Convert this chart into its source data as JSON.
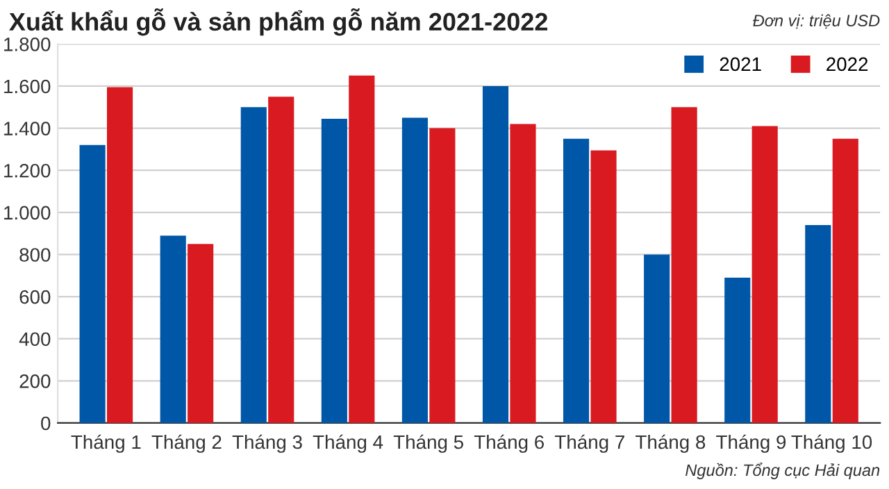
{
  "chart_data": {
    "type": "bar",
    "title": "Xuất khẩu gỗ và sản phẩm gỗ năm 2021-2022",
    "annotations": [
      "Đơn vị: triệu USD",
      "Nguồn: Tổng cục Hải quan"
    ],
    "categories": [
      "Tháng 1",
      "Tháng 2",
      "Tháng 3",
      "Tháng 4",
      "Tháng 5",
      "Tháng 6",
      "Tháng 7",
      "Tháng 8",
      "Tháng 9",
      "Tháng 10"
    ],
    "series": [
      {
        "name": "2021",
        "color": "#0057a8",
        "values": [
          1320,
          890,
          1500,
          1445,
          1450,
          1600,
          1350,
          800,
          690,
          940
        ]
      },
      {
        "name": "2022",
        "color": "#d91a21",
        "values": [
          1595,
          850,
          1550,
          1650,
          1400,
          1420,
          1295,
          1500,
          1410,
          1350
        ]
      }
    ],
    "ylim": [
      0,
      1800
    ],
    "yticks": [
      0,
      200,
      400,
      600,
      800,
      {
        "value": 1000,
        "label": "1.000"
      },
      {
        "value": 1200,
        "label": "1.200"
      },
      {
        "value": 1400,
        "label": "1.400"
      },
      {
        "value": 1600,
        "label": "1.600"
      },
      {
        "value": 1800,
        "label": "1.800"
      }
    ],
    "grid": "y",
    "legend": "top right"
  }
}
